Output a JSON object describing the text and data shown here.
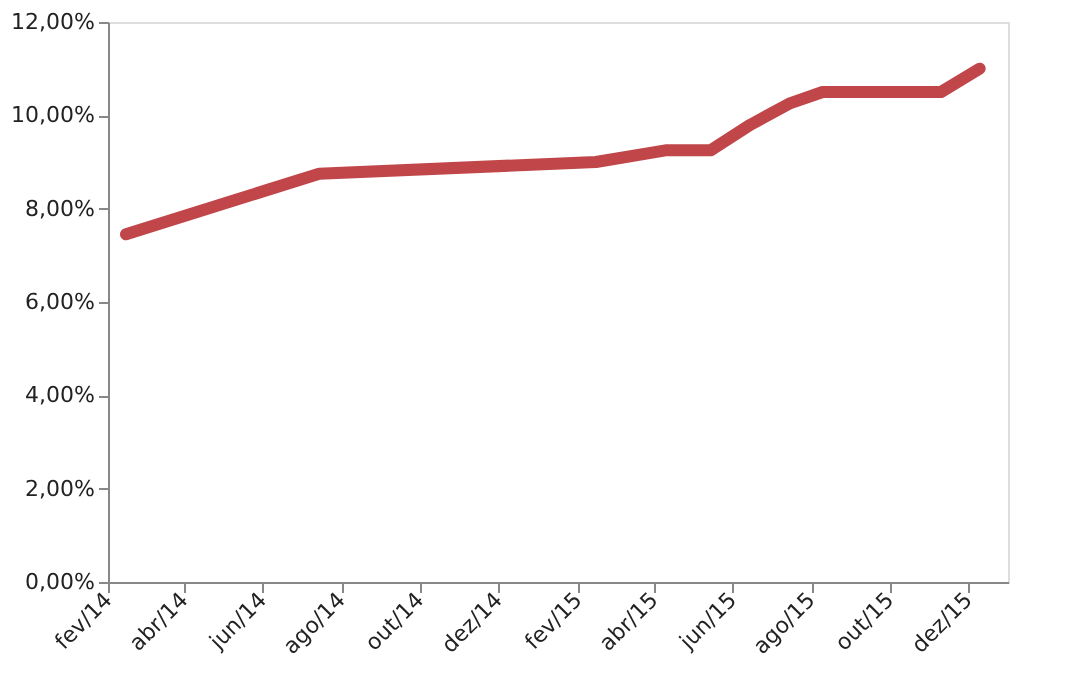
{
  "chart_data": {
    "type": "line",
    "x": [
      "2014-02-15",
      "2014-07-15",
      "2015-02-15",
      "2015-04-10",
      "2015-05-15",
      "2015-06-15",
      "2015-07-15",
      "2015-08-10",
      "2015-11-10",
      "2015-12-10"
    ],
    "series": [
      {
        "color": "#c0464a",
        "values": [
          7.45,
          8.75,
          9.0,
          9.25,
          9.25,
          9.8,
          10.25,
          10.5,
          10.5,
          11.0
        ]
      }
    ],
    "xlim": [
      "2014-02-01",
      "2016-01-01"
    ],
    "xticks": [
      {
        "value": "2014-02",
        "label": "fev/14"
      },
      {
        "value": "2014-04",
        "label": "abr/14"
      },
      {
        "value": "2014-06",
        "label": "jun/14"
      },
      {
        "value": "2014-08",
        "label": "ago/14"
      },
      {
        "value": "2014-10",
        "label": "out/14"
      },
      {
        "value": "2014-12",
        "label": "dez/14"
      },
      {
        "value": "2015-02",
        "label": "fev/15"
      },
      {
        "value": "2015-04",
        "label": "abr/15"
      },
      {
        "value": "2015-06",
        "label": "jun/15"
      },
      {
        "value": "2015-08",
        "label": "ago/15"
      },
      {
        "value": "2015-10",
        "label": "out/15"
      },
      {
        "value": "2015-12",
        "label": "dez/15"
      }
    ],
    "ylim": [
      0,
      12
    ],
    "yticks": [
      {
        "value": 0,
        "label": "0,00%"
      },
      {
        "value": 2,
        "label": "2,00%"
      },
      {
        "value": 4,
        "label": "4,00%"
      },
      {
        "value": 6,
        "label": "6,00%"
      },
      {
        "value": 8,
        "label": "8,00%"
      },
      {
        "value": 10,
        "label": "10,00%"
      },
      {
        "value": 12,
        "label": "12,00%"
      }
    ],
    "grid": false,
    "marker": "none",
    "line_style": "solid"
  }
}
